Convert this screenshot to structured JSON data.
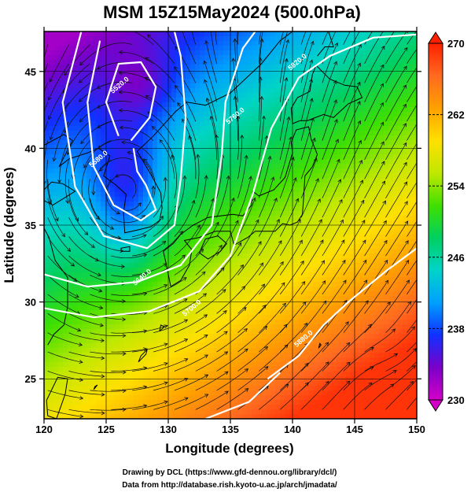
{
  "chart_data": {
    "type": "heatmap",
    "title": "MSM 15Z15May2024 (500.0hPa)",
    "xlabel": "Longitude (degrees)",
    "ylabel": "Latitude  (degrees)",
    "xlim": [
      120,
      150
    ],
    "ylim": [
      22.4,
      47.6
    ],
    "x_ticks": [
      120,
      125,
      130,
      135,
      140,
      145,
      150
    ],
    "y_ticks": [
      25,
      30,
      35,
      40,
      45
    ],
    "grid": true,
    "colorbar": {
      "min": 230,
      "max": 270,
      "tick_labels": [
        270,
        262,
        254,
        246,
        238,
        230
      ],
      "colors": [
        "#d400c8",
        "#7a00c8",
        "#1030ff",
        "#00a0ff",
        "#00d4c8",
        "#00d060",
        "#40e000",
        "#c0e800",
        "#ffe000",
        "#ffa000",
        "#ff6a20",
        "#ff2000"
      ]
    },
    "contours": [
      {
        "label": "5520.0",
        "lon": 126.2,
        "lat": 44.0
      },
      {
        "label": "5580.0",
        "lon": 124.5,
        "lat": 39.2
      },
      {
        "label": "5640.0",
        "lon": 128.0,
        "lat": 31.5
      },
      {
        "label": "5700.0",
        "lon": 132.0,
        "lat": 29.5
      },
      {
        "label": "5760.0",
        "lon": 135.5,
        "lat": 42.0
      },
      {
        "label": "5820.0",
        "lon": 140.5,
        "lat": 45.5
      },
      {
        "label": "5880.0",
        "lon": 141.0,
        "lat": 27.5
      }
    ],
    "wind_field": "streamlines over temperature shading"
  },
  "footer": {
    "line1": "Drawing by DCL (https://www.gfd-dennou.org/library/dcl/)",
    "line2": "Data from http://database.rish.kyoto-u.ac.jp/arch/jmadata/"
  }
}
